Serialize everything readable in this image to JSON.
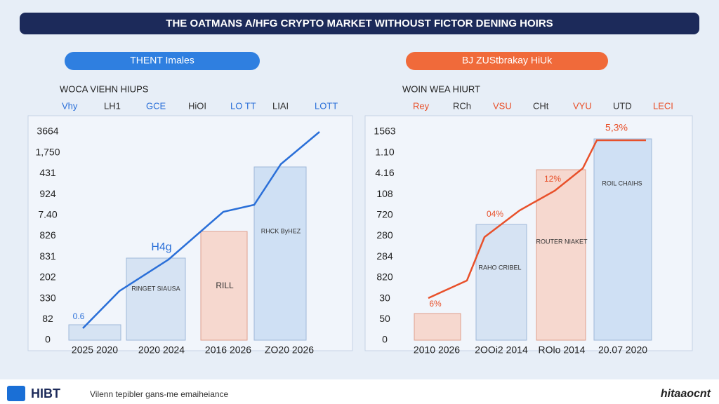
{
  "header": {
    "title": "THE OATMANS A/HFG CRYPTO MARKET WITHOUST FICTOR DENING HOIRS"
  },
  "panels": [
    {
      "pill": "THENT Imales",
      "subtitle": "WOCA VIEHN HIUPS",
      "legend": [
        "Vhy",
        "LH1",
        "GCE",
        "HiOI",
        "LO TT",
        "LIAI",
        "LOTT"
      ],
      "y_labels": [
        "3664",
        "1,750",
        "431",
        "924",
        "7.40",
        "826",
        "831",
        "202",
        "330",
        "82",
        "0"
      ],
      "x_labels": [
        "2025 2020",
        "2020 2024",
        "2016 2026",
        "ZO20 2026"
      ],
      "annotations": [
        "H4g",
        "0.6",
        "RINGET SIAUSA",
        "RILL",
        "RHCK ByHEZ"
      ]
    },
    {
      "pill": "BJ ZUStbrakay HiUk",
      "subtitle": "WOIN WEA HIURT",
      "legend": [
        "Rey",
        "RCh",
        "VSU",
        "CHt",
        "VYU",
        "UTD",
        "LECI"
      ],
      "y_labels": [
        "1563",
        "1.10",
        "4.16",
        "108",
        "720",
        "280",
        "284",
        "820",
        "30",
        "50",
        "0"
      ],
      "x_labels": [
        "2010 2026",
        "2OOi2 2014",
        "ROlo 2014",
        "20.07 2020"
      ],
      "annotations": [
        "5,3%",
        "04%",
        "12%",
        "6%",
        "RAHO CRIBEL",
        "ROUTER NIAKET",
        "ROIL CHAIHS"
      ]
    }
  ],
  "footer": {
    "logo": "HIBT",
    "tagline": "Vilenn tepibler gans-me emaiheiance",
    "brand": "hitaaocnt"
  }
}
